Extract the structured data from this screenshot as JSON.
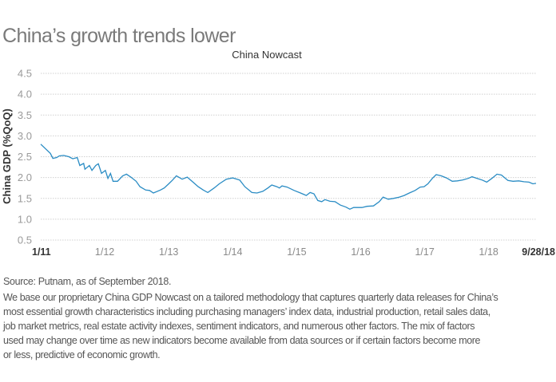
{
  "header": {
    "title": "China’s growth trends lower"
  },
  "chart_data": {
    "type": "line",
    "title": "China Nowcast",
    "xlabel": "",
    "ylabel": "China GDP (%QoQ)",
    "ylim": [
      0.5,
      4.5
    ],
    "xlim": [
      2011.0,
      2018.74
    ],
    "grid": true,
    "yticks": [
      "0.5",
      "1.0",
      "1.5",
      "2.0",
      "2.5",
      "3.0",
      "3.5",
      "4.0",
      "4.5"
    ],
    "ytick_values": [
      0.5,
      1.0,
      1.5,
      2.0,
      2.5,
      3.0,
      3.5,
      4.0,
      4.5
    ],
    "xticks": [
      {
        "label": "1/11",
        "value": 2011.0,
        "bold": true
      },
      {
        "label": "1/12",
        "value": 2012.0,
        "bold": false
      },
      {
        "label": "1/13",
        "value": 2013.0,
        "bold": false
      },
      {
        "label": "1/14",
        "value": 2014.0,
        "bold": false
      },
      {
        "label": "1/15",
        "value": 2015.0,
        "bold": false
      },
      {
        "label": "1/16",
        "value": 2016.0,
        "bold": false
      },
      {
        "label": "1/17",
        "value": 2017.0,
        "bold": false
      },
      {
        "label": "1/18",
        "value": 2018.0,
        "bold": false
      },
      {
        "label": "9/28/18",
        "value": 2018.74,
        "bold": true
      }
    ],
    "line_color": "#2a8cc4",
    "series": [
      {
        "name": "China Nowcast",
        "x": [
          2011.0,
          2011.15,
          2011.19,
          2011.25,
          2011.29,
          2011.36,
          2011.44,
          2011.5,
          2011.57,
          2011.61,
          2011.67,
          2011.69,
          2011.76,
          2011.8,
          2011.86,
          2011.9,
          2011.95,
          2012.01,
          2012.05,
          2012.09,
          2012.13,
          2012.2,
          2012.28,
          2012.34,
          2012.41,
          2012.49,
          2012.55,
          2012.64,
          2012.7,
          2012.76,
          2012.87,
          2012.93,
          2013.0,
          2013.06,
          2013.12,
          2013.21,
          2013.29,
          2013.38,
          2013.46,
          2013.54,
          2013.61,
          2013.71,
          2013.79,
          2013.9,
          2014.0,
          2014.11,
          2014.19,
          2014.3,
          2014.38,
          2014.47,
          2014.55,
          2014.61,
          2014.69,
          2014.73,
          2014.77,
          2014.85,
          2014.96,
          2015.06,
          2015.15,
          2015.21,
          2015.27,
          2015.33,
          2015.39,
          2015.44,
          2015.52,
          2015.6,
          2015.68,
          2015.77,
          2015.83,
          2015.89,
          2016.02,
          2016.1,
          2016.2,
          2016.29,
          2016.35,
          2016.43,
          2016.51,
          2016.6,
          2016.68,
          2016.76,
          2016.85,
          2016.93,
          2016.99,
          2017.05,
          2017.12,
          2017.18,
          2017.26,
          2017.34,
          2017.43,
          2017.51,
          2017.59,
          2017.68,
          2017.74,
          2017.82,
          2017.9,
          2017.97,
          2018.05,
          2018.13,
          2018.2,
          2018.3,
          2018.38,
          2018.47,
          2018.55,
          2018.63,
          2018.69,
          2018.74
        ],
        "values": [
          2.8,
          2.58,
          2.46,
          2.48,
          2.52,
          2.53,
          2.5,
          2.45,
          2.48,
          2.29,
          2.34,
          2.2,
          2.29,
          2.17,
          2.29,
          2.33,
          2.1,
          2.17,
          1.98,
          2.1,
          1.91,
          1.91,
          2.04,
          2.08,
          2.01,
          1.91,
          1.78,
          1.7,
          1.69,
          1.63,
          1.7,
          1.75,
          1.85,
          1.94,
          2.04,
          1.96,
          2.01,
          1.89,
          1.78,
          1.7,
          1.64,
          1.75,
          1.85,
          1.96,
          1.99,
          1.94,
          1.78,
          1.64,
          1.63,
          1.67,
          1.75,
          1.82,
          1.78,
          1.75,
          1.8,
          1.77,
          1.69,
          1.63,
          1.57,
          1.64,
          1.61,
          1.45,
          1.42,
          1.47,
          1.43,
          1.42,
          1.34,
          1.29,
          1.24,
          1.28,
          1.28,
          1.31,
          1.32,
          1.42,
          1.53,
          1.48,
          1.5,
          1.53,
          1.57,
          1.63,
          1.69,
          1.77,
          1.78,
          1.85,
          1.98,
          2.07,
          2.04,
          1.99,
          1.91,
          1.92,
          1.94,
          1.98,
          2.02,
          1.98,
          1.94,
          1.89,
          1.98,
          2.08,
          2.06,
          1.93,
          1.91,
          1.92,
          1.9,
          1.89,
          1.85,
          1.86
        ]
      }
    ]
  },
  "footer": {
    "source": "Source: Putnam, as of September 2018.",
    "body_lines": [
      "We base our proprietary China GDP Nowcast on a tailored methodology that captures quarterly data releases for China’s",
      "most essential growth characteristics including purchasing managers’ index data, industrial production, retail sales data,",
      "job market metrics, real estate activity indexes, sentiment indicators, and numerous other factors. The mix of factors",
      "used may change over time as new indicators become available from data sources or if certain factors become more",
      "or less, predictive of economic growth."
    ]
  }
}
